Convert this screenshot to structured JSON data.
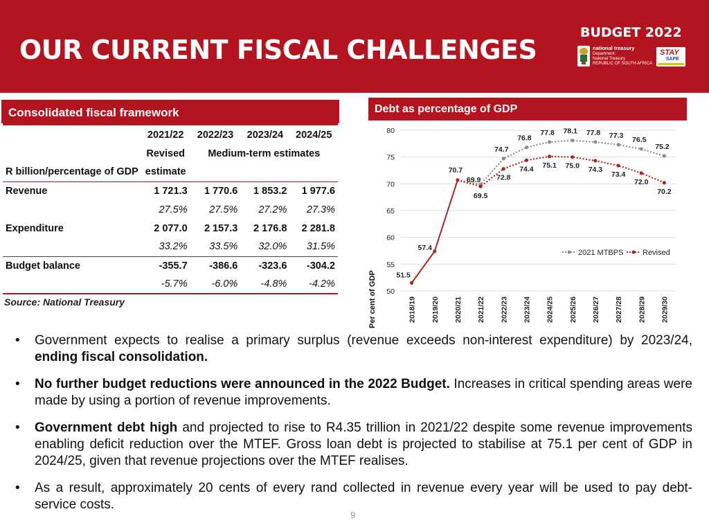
{
  "header": {
    "title": "OUR CURRENT FISCAL CHALLENGES",
    "brand": "BUDGET 2022",
    "logo_nt_line1": "national treasury",
    "logo_nt_line2": "Department:",
    "logo_nt_line3": "National Treasury",
    "logo_nt_line4": "REPUBLIC OF SOUTH AFRICA",
    "logo_stay": "STAY",
    "logo_safe": "SAFE"
  },
  "left_panel": {
    "heading": "Consolidated fiscal framework",
    "header_row1": [
      "2021/22",
      "2022/23",
      "2023/24",
      "2024/25"
    ],
    "header_row2_col1": "Revised",
    "header_row2_span": "Medium-term estimates",
    "header_row3_label": "R billion/percentage of GDP",
    "header_row3_col1": "estimate",
    "rows": [
      {
        "label": "Revenue",
        "values": [
          "1 721.3",
          "1 770.6",
          "1 853.2",
          "1 977.6"
        ],
        "pct": [
          "27.5%",
          "27.5%",
          "27.2%",
          "27.3%"
        ]
      },
      {
        "label": "Expenditure",
        "values": [
          "2 077.0",
          "2 157.3",
          "2 176.8",
          "2 281.8"
        ],
        "pct": [
          "33.2%",
          "33.5%",
          "32.0%",
          "31.5%"
        ]
      },
      {
        "label": "Budget balance",
        "values": [
          "-355.7",
          "-386.6",
          "-323.6",
          "-304.2"
        ],
        "pct": [
          "-5.7%",
          "-6.0%",
          "-4.8%",
          "-4.2%"
        ]
      }
    ],
    "source": "Source: National Treasury"
  },
  "right_panel": {
    "heading": "Debt as percentage of GDP"
  },
  "chart_data": {
    "type": "line",
    "title": "Debt as percentage of GDP",
    "ylabel": "Per cent of GDP",
    "ylim": [
      50,
      80
    ],
    "yticks": [
      50,
      55,
      60,
      65,
      70,
      75,
      80
    ],
    "grid": true,
    "legend_position": "lower-right",
    "categories": [
      "2018/19",
      "2019/20",
      "2020/21",
      "2021/22",
      "2022/23",
      "2023/24",
      "2024/25",
      "2025/26",
      "2026/27",
      "2027/28",
      "2028/29",
      "2029/30"
    ],
    "series": [
      {
        "name": "2021 MTBPS",
        "color": "#8c8c8c",
        "style": "dotted",
        "values": [
          null,
          null,
          70.7,
          69.9,
          74.7,
          76.8,
          77.8,
          78.1,
          77.8,
          77.3,
          76.5,
          75.2
        ],
        "labels": [
          null,
          null,
          null,
          "69.9",
          "74.7",
          "76.8",
          "77.8",
          "78.1",
          "77.8",
          "77.3",
          "76.5",
          "75.2"
        ]
      },
      {
        "name": "Revised",
        "color": "#a8271c",
        "style": "solid-then-dotted",
        "values": [
          51.5,
          57.4,
          70.7,
          69.5,
          72.8,
          74.4,
          75.1,
          75.0,
          74.3,
          73.4,
          72.0,
          70.2
        ],
        "labels": [
          "51.5",
          "57.4",
          "70.7",
          "69.5",
          "72.8",
          "74.4",
          "75.1",
          "75.0",
          "74.3",
          "73.4",
          "72.0",
          "70.2"
        ]
      }
    ]
  },
  "bullets": [
    {
      "text": "Government expects to realise a primary surplus (revenue exceeds non-interest expenditure) by 2023/24, ",
      "bold_tail": "ending fiscal consolidation."
    },
    {
      "bold_head": "No further budget reductions were announced in the 2022 Budget.",
      "text": " Increases in critical spending areas were made by using a portion of revenue improvements."
    },
    {
      "bold_head": "Government debt high",
      "text": " and projected to rise to R4.35 trillion in 2021/22 despite some revenue improvements enabling deficit reduction over the MTEF. Gross loan debt is projected to stabilise at 75.1 per cent of GDP in 2024/25, given that revenue projections over the MTEF realises."
    },
    {
      "text": "As a result, approximately 20 cents of every rand collected in revenue every year will be used to pay debt-service costs."
    }
  ],
  "page_number": "9",
  "colors": {
    "accent": "#b2151f",
    "mtbps": "#8c8c8c",
    "revised": "#a8271c"
  }
}
